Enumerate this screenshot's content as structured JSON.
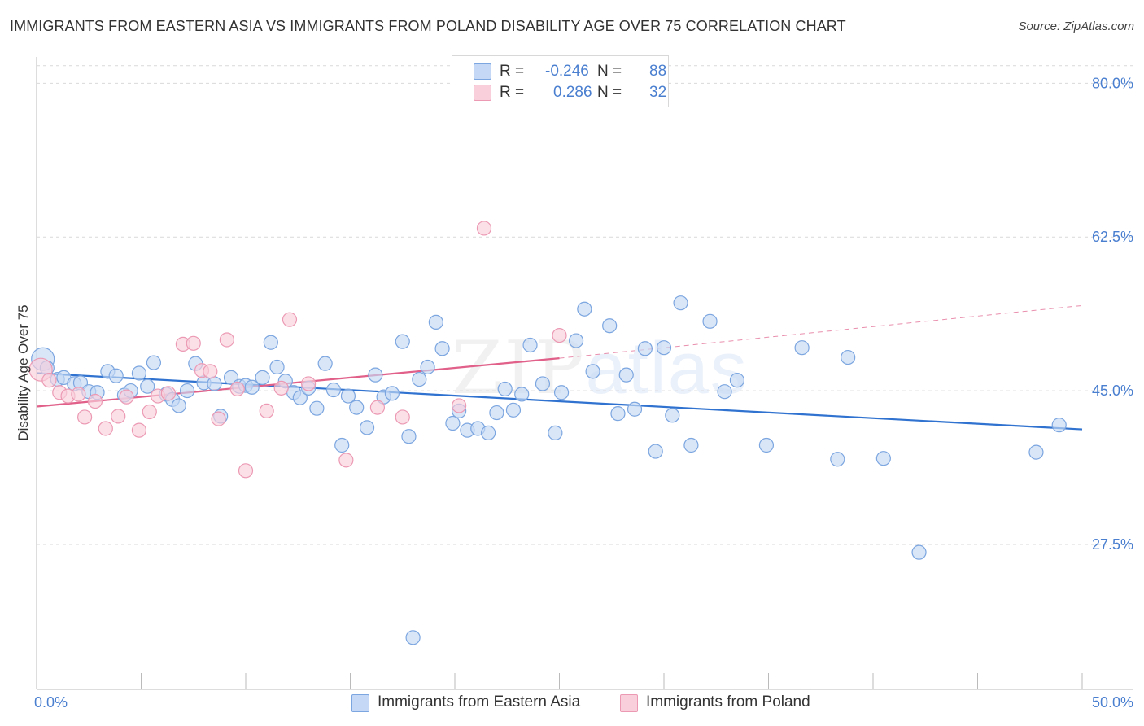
{
  "header": {
    "title": "IMMIGRANTS FROM EASTERN ASIA VS IMMIGRANTS FROM POLAND DISABILITY AGE OVER 75 CORRELATION CHART",
    "source": "Source: ZipAtlas.com"
  },
  "watermark": {
    "part1": "ZIP",
    "part2": "atlas"
  },
  "stats": {
    "r_label": "R =",
    "n_label": "N =",
    "rows": [
      {
        "r": "-0.246",
        "n": "88"
      },
      {
        "r": "0.286",
        "n": "32"
      }
    ]
  },
  "legend": {
    "items": [
      {
        "label": "Immigrants from Eastern Asia"
      },
      {
        "label": "Immigrants from Poland"
      }
    ]
  },
  "colors": {
    "blue_fill": "#c5d8f5",
    "blue_stroke": "#7ca6e0",
    "blue_line": "#2f72cf",
    "pink_fill": "#f9cfdc",
    "pink_stroke": "#ec9ab4",
    "pink_line": "#e0608a",
    "tick_text": "#4a7fd0",
    "grid": "#d9d9d9"
  },
  "chart_data": {
    "type": "scatter",
    "title": "IMMIGRANTS FROM EASTERN ASIA VS IMMIGRANTS FROM POLAND DISABILITY AGE OVER 75 CORRELATION CHART",
    "xlabel": "",
    "ylabel": "Disability Age Over 75",
    "xlim": [
      0,
      50
    ],
    "ylim": [
      11,
      83
    ],
    "x_tick_labels": [
      "0.0%",
      "50.0%"
    ],
    "y_ticks": [
      27.5,
      45.0,
      62.5,
      80.0
    ],
    "y_tick_labels": [
      "27.5%",
      "45.0%",
      "62.5%",
      "80.0%"
    ],
    "grid": true,
    "legend_position": "bottom",
    "series": [
      {
        "name": "Immigrants from Eastern Asia",
        "color": "#7ca6e0",
        "trend": {
          "x": [
            0,
            50
          ],
          "y": [
            47.0,
            40.6
          ]
        },
        "points": [
          [
            0.3,
            48.6
          ],
          [
            0.5,
            47.6
          ],
          [
            1.0,
            46.3
          ],
          [
            1.3,
            46.5
          ],
          [
            1.8,
            45.8
          ],
          [
            2.1,
            45.9
          ],
          [
            2.5,
            44.9
          ],
          [
            2.9,
            44.8
          ],
          [
            3.4,
            47.2
          ],
          [
            3.8,
            46.7
          ],
          [
            4.2,
            44.5
          ],
          [
            4.5,
            45.0
          ],
          [
            4.9,
            47.0
          ],
          [
            5.3,
            45.5
          ],
          [
            5.6,
            48.2
          ],
          [
            6.2,
            44.6
          ],
          [
            6.5,
            44.0
          ],
          [
            6.8,
            43.3
          ],
          [
            7.2,
            45.0
          ],
          [
            7.6,
            48.1
          ],
          [
            8.0,
            45.9
          ],
          [
            8.5,
            45.8
          ],
          [
            8.8,
            42.1
          ],
          [
            9.3,
            46.5
          ],
          [
            9.7,
            45.5
          ],
          [
            10.0,
            45.6
          ],
          [
            10.3,
            45.4
          ],
          [
            10.8,
            46.5
          ],
          [
            11.2,
            50.5
          ],
          [
            11.5,
            47.7
          ],
          [
            11.9,
            46.1
          ],
          [
            12.3,
            44.8
          ],
          [
            12.6,
            44.2
          ],
          [
            13.0,
            45.3
          ],
          [
            13.4,
            43.0
          ],
          [
            13.8,
            48.1
          ],
          [
            14.2,
            45.1
          ],
          [
            14.6,
            38.8
          ],
          [
            14.9,
            44.4
          ],
          [
            15.3,
            43.1
          ],
          [
            15.8,
            40.8
          ],
          [
            16.2,
            46.8
          ],
          [
            16.6,
            44.3
          ],
          [
            17.0,
            44.7
          ],
          [
            17.5,
            50.6
          ],
          [
            17.8,
            39.8
          ],
          [
            18.3,
            46.3
          ],
          [
            18.7,
            47.7
          ],
          [
            19.1,
            52.8
          ],
          [
            19.4,
            49.8
          ],
          [
            19.9,
            41.3
          ],
          [
            20.2,
            42.7
          ],
          [
            20.6,
            40.5
          ],
          [
            21.1,
            40.7
          ],
          [
            21.6,
            40.2
          ],
          [
            22.0,
            42.5
          ],
          [
            22.4,
            45.2
          ],
          [
            22.8,
            42.8
          ],
          [
            23.2,
            44.6
          ],
          [
            23.6,
            50.2
          ],
          [
            24.2,
            45.8
          ],
          [
            24.8,
            40.2
          ],
          [
            25.1,
            44.8
          ],
          [
            25.8,
            50.7
          ],
          [
            26.2,
            54.3
          ],
          [
            26.6,
            47.2
          ],
          [
            27.4,
            52.4
          ],
          [
            27.8,
            42.4
          ],
          [
            28.2,
            46.8
          ],
          [
            28.6,
            42.9
          ],
          [
            29.1,
            49.8
          ],
          [
            29.6,
            38.1
          ],
          [
            30.0,
            49.9
          ],
          [
            30.4,
            42.2
          ],
          [
            30.8,
            55.0
          ],
          [
            31.3,
            38.8
          ],
          [
            32.2,
            52.9
          ],
          [
            32.9,
            44.9
          ],
          [
            33.5,
            46.2
          ],
          [
            34.9,
            38.8
          ],
          [
            36.6,
            49.9
          ],
          [
            38.3,
            37.2
          ],
          [
            38.8,
            48.8
          ],
          [
            40.5,
            37.3
          ],
          [
            42.2,
            26.6
          ],
          [
            47.8,
            38.0
          ],
          [
            48.9,
            41.1
          ],
          [
            18.0,
            16.9
          ]
        ]
      },
      {
        "name": "Immigrants from Poland",
        "color": "#ec9ab4",
        "trend": {
          "x": [
            0,
            25
          ],
          "y": [
            43.2,
            48.7
          ]
        },
        "trend_ext": {
          "x": [
            25,
            50
          ],
          "y": [
            48.7,
            54.7
          ]
        },
        "points": [
          [
            0.2,
            47.4
          ],
          [
            0.6,
            46.2
          ],
          [
            1.1,
            44.8
          ],
          [
            1.5,
            44.4
          ],
          [
            2.0,
            44.6
          ],
          [
            2.3,
            42.0
          ],
          [
            2.8,
            43.8
          ],
          [
            3.3,
            40.7
          ],
          [
            3.9,
            42.1
          ],
          [
            4.3,
            44.3
          ],
          [
            4.9,
            40.5
          ],
          [
            5.4,
            42.6
          ],
          [
            5.8,
            44.4
          ],
          [
            6.3,
            44.7
          ],
          [
            7.0,
            50.3
          ],
          [
            7.5,
            50.4
          ],
          [
            7.9,
            47.3
          ],
          [
            8.3,
            47.2
          ],
          [
            8.7,
            41.8
          ],
          [
            9.1,
            50.8
          ],
          [
            9.6,
            45.2
          ],
          [
            10.0,
            35.9
          ],
          [
            11.0,
            42.7
          ],
          [
            11.7,
            45.3
          ],
          [
            12.1,
            53.1
          ],
          [
            13.0,
            45.8
          ],
          [
            14.8,
            37.1
          ],
          [
            16.3,
            43.1
          ],
          [
            17.5,
            42.0
          ],
          [
            20.2,
            43.3
          ],
          [
            21.4,
            63.5
          ],
          [
            25.0,
            51.3
          ]
        ]
      }
    ]
  }
}
